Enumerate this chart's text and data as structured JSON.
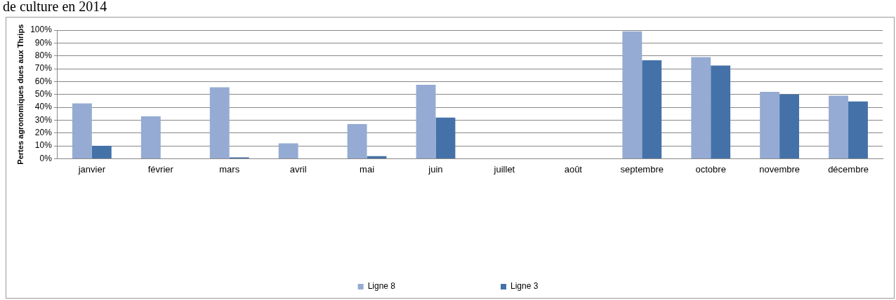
{
  "chart_data": {
    "type": "bar",
    "title": "de culture en 2014",
    "ylabel": "Pertes agronomiques dues aux Thrips",
    "categories": [
      "janvier",
      "février",
      "mars",
      "avril",
      "mai",
      "juin",
      "juillet",
      "août",
      "septembre",
      "octobre",
      "novembre",
      "décembre"
    ],
    "series": [
      {
        "name": "Ligne 8",
        "color": "#95abd3",
        "values": [
          43,
          33,
          55.5,
          12,
          27,
          57.5,
          0,
          0,
          99,
          79,
          52,
          49
        ]
      },
      {
        "name": "Ligne 3",
        "color": "#4472a8",
        "values": [
          10,
          0,
          1,
          0,
          2,
          32,
          0,
          0,
          76.5,
          72.5,
          50,
          44.5
        ]
      }
    ],
    "ylim": [
      0,
      100
    ],
    "yticks": [
      {
        "value": 0,
        "label": "0%"
      },
      {
        "value": 10,
        "label": "10%"
      },
      {
        "value": 20,
        "label": "20%"
      },
      {
        "value": 30,
        "label": "30%"
      },
      {
        "value": 40,
        "label": "40%"
      },
      {
        "value": 50,
        "label": "50%"
      },
      {
        "value": 60,
        "label": "60%"
      },
      {
        "value": 70,
        "label": "70%"
      },
      {
        "value": 80,
        "label": "80%"
      },
      {
        "value": 90,
        "label": "90%"
      },
      {
        "value": 100,
        "label": "100%"
      }
    ],
    "grid": "y",
    "legend": "bottom"
  }
}
